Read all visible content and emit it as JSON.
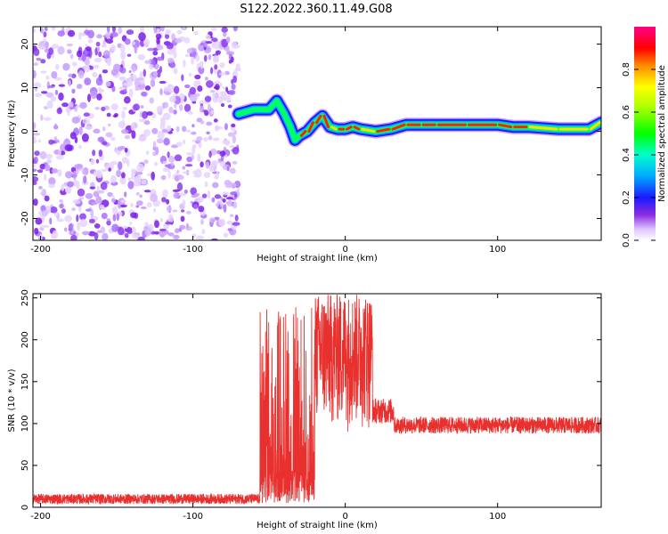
{
  "title": "S122.2022.360.11.49.G08",
  "chart_data": [
    {
      "type": "heatmap",
      "xlabel": "Height of straight line (km)",
      "ylabel": "Frequency (Hz)",
      "xlim": [
        -205,
        168
      ],
      "ylim": [
        -25,
        24
      ],
      "x_ticks": [
        -200,
        -100,
        0,
        100
      ],
      "y_ticks": [
        -20,
        -10,
        0,
        10,
        20
      ],
      "colorbar": {
        "label": "Normalized spectral amplitude",
        "range": [
          0,
          1
        ],
        "ticks": [
          0.0,
          0.2,
          0.4,
          0.6,
          0.8
        ]
      },
      "noise_region_x": [
        -205,
        -70
      ],
      "ridge": {
        "x": [
          -70,
          -60,
          -50,
          -45,
          -40,
          -36,
          -33,
          -30,
          -25,
          -20,
          -15,
          -10,
          -5,
          0,
          5,
          10,
          20,
          30,
          40,
          50,
          60,
          80,
          100,
          110,
          120,
          140,
          160,
          168
        ],
        "frequency": [
          4,
          5,
          5,
          7,
          4,
          1,
          -2,
          -1,
          0,
          2,
          3.5,
          1,
          0.5,
          0.5,
          1,
          0.5,
          0,
          0.5,
          1.5,
          1.5,
          1.5,
          1.5,
          1.5,
          1,
          1,
          0.5,
          0.5,
          2
        ]
      }
    },
    {
      "type": "line",
      "xlabel": "Height of straight line (km)",
      "ylabel": "SNR (10 * v/v)",
      "xlim": [
        -205,
        168
      ],
      "ylim": [
        0,
        255
      ],
      "x_ticks": [
        -200,
        -100,
        0,
        100
      ],
      "y_ticks": [
        0,
        50,
        100,
        150,
        200,
        250
      ],
      "color": "#e8312f",
      "segments": [
        {
          "x": [
            -205,
            -56
          ],
          "mean": 10,
          "noise": 6
        },
        {
          "x": [
            -56,
            -20
          ],
          "min": 5,
          "max": 240,
          "mode": "oscillating"
        },
        {
          "x": [
            -20,
            18
          ],
          "min": 90,
          "max": 255,
          "mode": "oscillating-high"
        },
        {
          "x": [
            18,
            32
          ],
          "mean": 115,
          "noise": 15
        },
        {
          "x": [
            32,
            168
          ],
          "mean": 98,
          "noise": 10
        }
      ]
    }
  ]
}
